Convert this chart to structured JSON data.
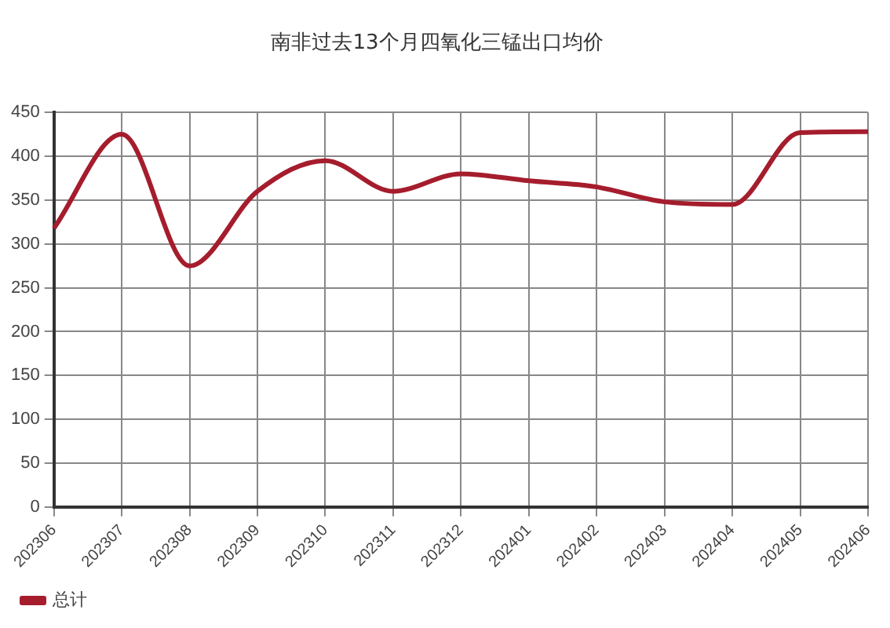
{
  "chart_data": {
    "type": "line",
    "title": "南非过去13个月四氧化三锰出口均价",
    "categories": [
      "202306",
      "202307",
      "202308",
      "202309",
      "202310",
      "202311",
      "202312",
      "202401",
      "202402",
      "202403",
      "202404",
      "202405",
      "202406"
    ],
    "series": [
      {
        "name": "总计",
        "color": "#a51d2d",
        "values": [
          318,
          425,
          275,
          360,
          395,
          360,
          380,
          372,
          365,
          348,
          345,
          427,
          428
        ]
      }
    ],
    "ylim": [
      0,
      450
    ],
    "yticks": [
      0,
      50,
      100,
      150,
      200,
      250,
      300,
      350,
      400,
      450
    ],
    "grid": true,
    "legend": "bottom left",
    "marker": "none",
    "line_style": "solid"
  }
}
